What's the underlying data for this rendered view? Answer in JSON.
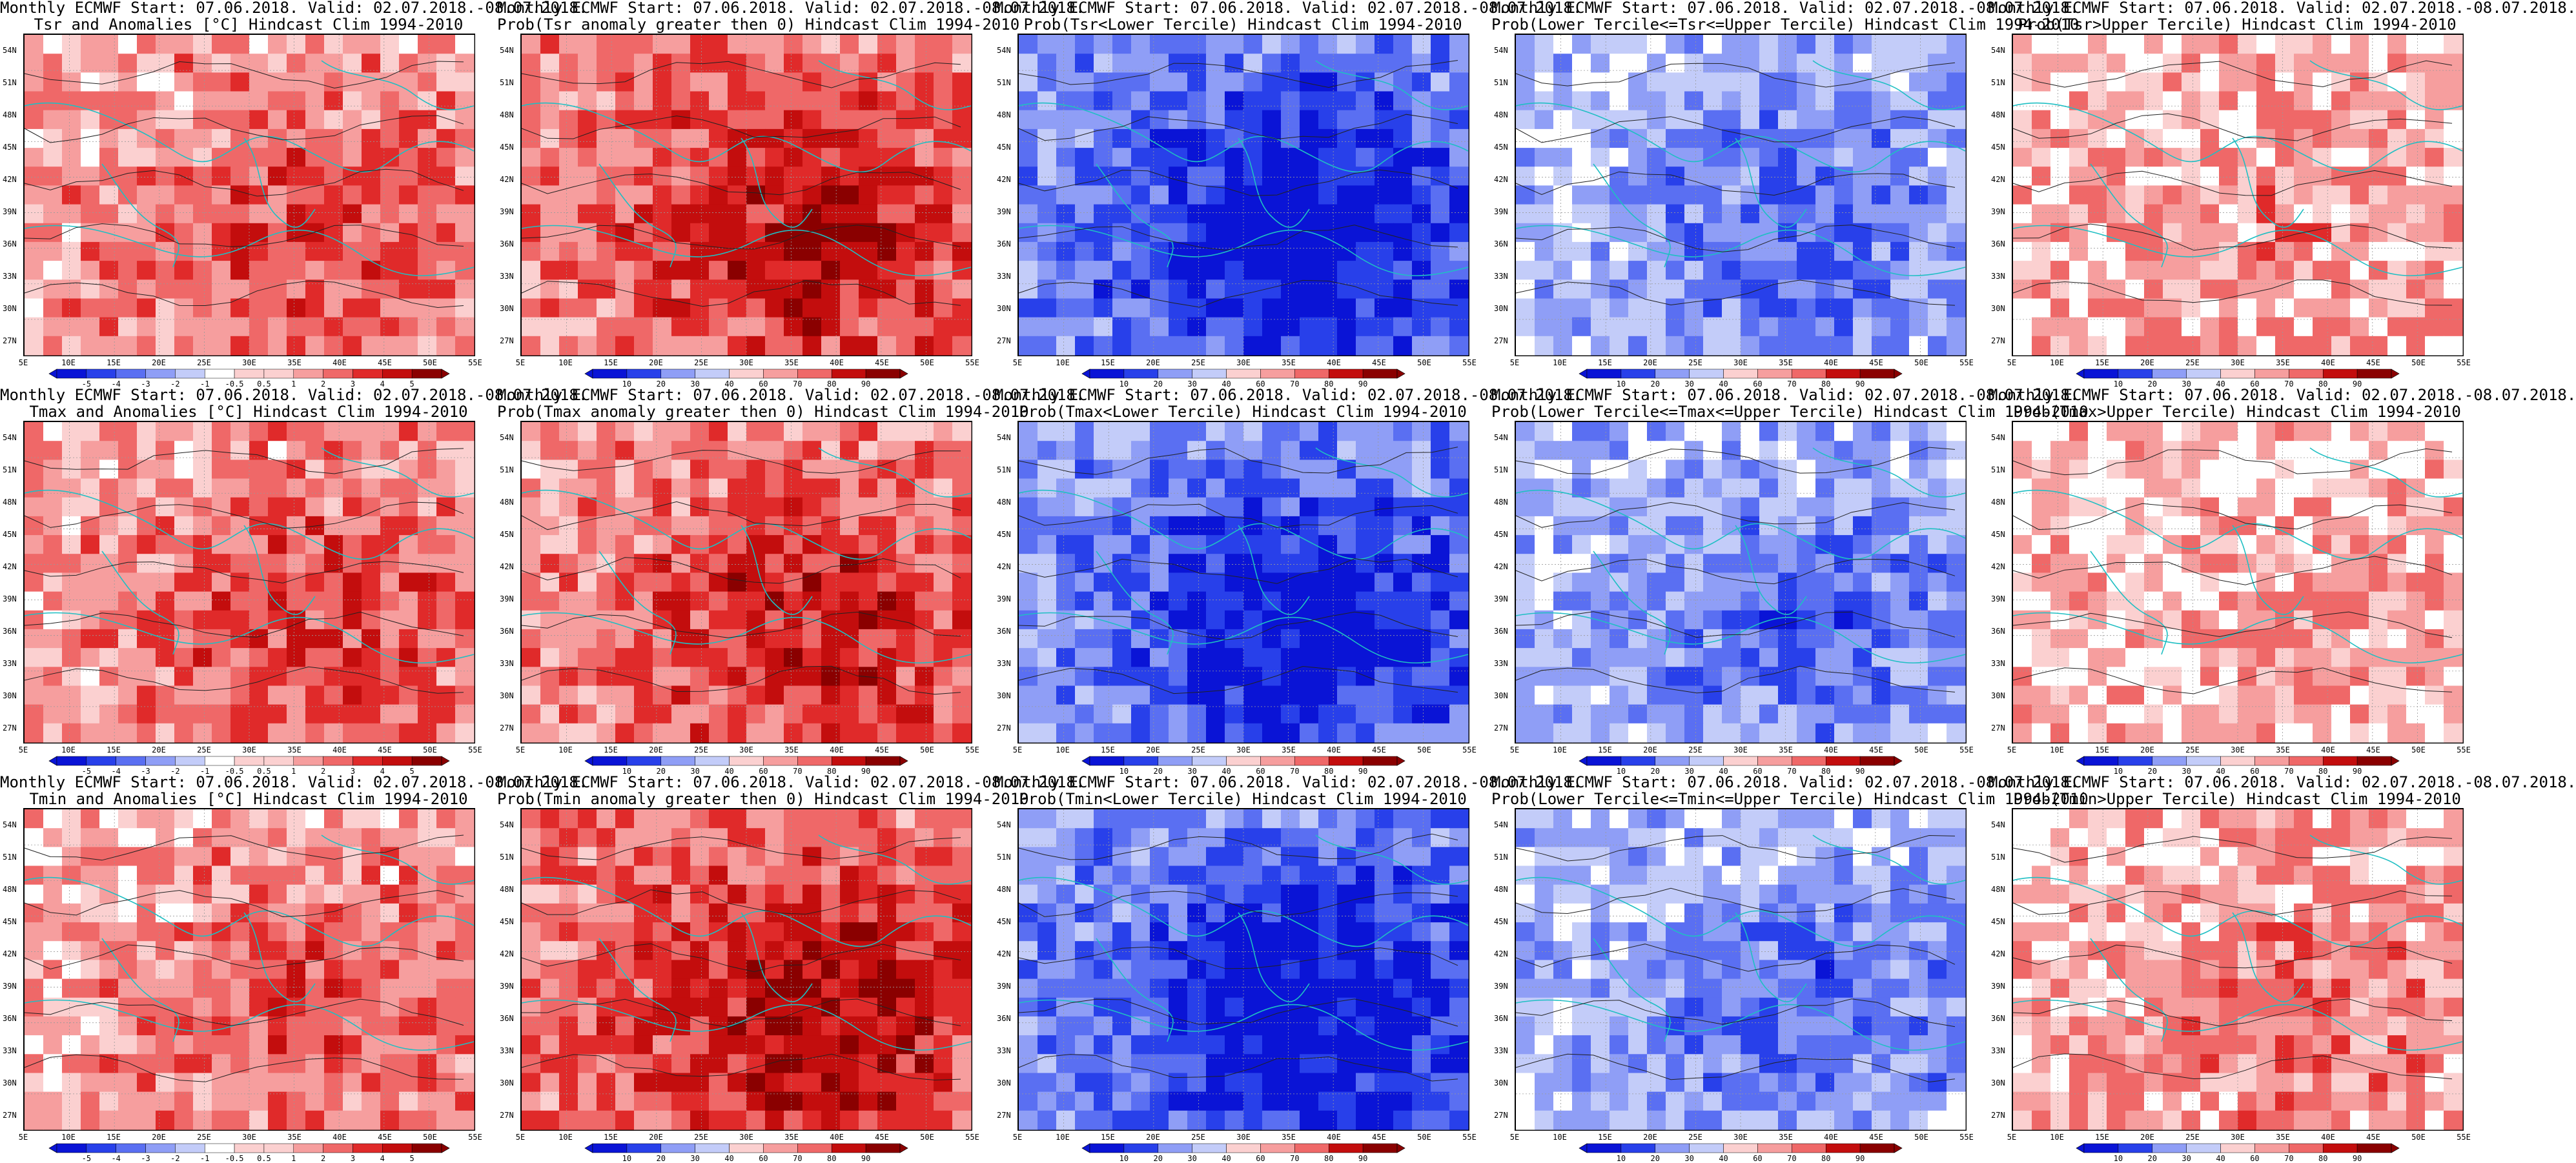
{
  "figure": {
    "colors": {
      "diverging": [
        "#0a14d6",
        "#2840ea",
        "#5a6ff2",
        "#8f9ef6",
        "#c3ccf9",
        "#ffffff",
        "#fbd0d0",
        "#f69e9e",
        "#ef6868",
        "#e02a2a",
        "#c30d0d",
        "#8a0000"
      ],
      "grid": "#999999",
      "coast": "#1fbfc3",
      "contour": "#222222"
    },
    "lat_labels": [
      "54N",
      "51N",
      "48N",
      "45N",
      "42N",
      "39N",
      "36N",
      "33N",
      "30N",
      "27N"
    ],
    "lon_labels": [
      "5E",
      "10E",
      "15E",
      "20E",
      "25E",
      "30E",
      "35E",
      "40E",
      "45E",
      "50E",
      "55E"
    ],
    "panels": [
      {
        "title_line1": "Monthly ECMWF Start: 07.06.2018. Valid: 02.07.2018.-08.07.2018.",
        "title_line2": "Tsr and Anomalies [°C] Hindcast Clim 1994-2010",
        "scale": "anom",
        "bias": 0.45,
        "colorbar": [
          "-5",
          "-4",
          "-3",
          "-2",
          "-1",
          "-0.5",
          "0.5",
          "1",
          "2",
          "3",
          "4",
          "5"
        ]
      },
      {
        "title_line1": "Monthly ECMWF Start: 07.06.2018. Valid: 02.07.2018.-08.07.2018.",
        "title_line2": "Prob(Tsr anomaly greater then 0) Hindcast Clim 1994-2010",
        "scale": "prob",
        "bias": 0.6,
        "colorbar": [
          "10",
          "20",
          "30",
          "40",
          "60",
          "70",
          "80",
          "90"
        ]
      },
      {
        "title_line1": "Monthly ECMWF Start: 07.06.2018. Valid: 02.07.2018.-08.07.2018.",
        "title_line2": "Prob(Tsr<Lower Tercile) Hindcast Clim 1994-2010",
        "scale": "prob",
        "bias": -0.85,
        "colorbar": [
          "10",
          "20",
          "30",
          "40",
          "60",
          "70",
          "80",
          "90"
        ]
      },
      {
        "title_line1": "Monthly ECMWF Start: 07.06.2018. Valid: 02.07.2018.-08.07.2018.",
        "title_line2": "Prob(Lower Tercile<=Tsr<=Upper Tercile) Hindcast Clim 1994-2010",
        "scale": "prob",
        "bias": -0.5,
        "colorbar": [
          "10",
          "20",
          "30",
          "40",
          "60",
          "70",
          "80",
          "90"
        ]
      },
      {
        "title_line1": "Monthly ECMWF Start: 07.06.2018. Valid: 02.07.2018.-08.07.2018.",
        "title_line2": "Prob(Tsr>Upper Tercile) Hindcast Clim 1994-2010",
        "scale": "prob",
        "bias": 0.25,
        "colorbar": [
          "10",
          "20",
          "30",
          "40",
          "60",
          "70",
          "80",
          "90"
        ]
      },
      {
        "title_line1": "Monthly ECMWF Start: 07.06.2018. Valid: 02.07.2018.-08.07.2018.",
        "title_line2": "Tmax and Anomalies [°C] Hindcast Clim 1994-2010",
        "scale": "anom",
        "bias": 0.45,
        "colorbar": [
          "-5",
          "-4",
          "-3",
          "-2",
          "-1",
          "-0.5",
          "0.5",
          "1",
          "2",
          "3",
          "4",
          "5"
        ]
      },
      {
        "title_line1": "Monthly ECMWF Start: 07.06.2018. Valid: 02.07.2018.-08.07.2018.",
        "title_line2": "Prob(Tmax anomaly greater then 0) Hindcast Clim 1994-2010",
        "scale": "prob",
        "bias": 0.55,
        "colorbar": [
          "10",
          "20",
          "30",
          "40",
          "60",
          "70",
          "80",
          "90"
        ]
      },
      {
        "title_line1": "Monthly ECMWF Start: 07.06.2018. Valid: 02.07.2018.-08.07.2018.",
        "title_line2": "Prob(Tmax<Lower Tercile) Hindcast Clim 1994-2010",
        "scale": "prob",
        "bias": -0.8,
        "colorbar": [
          "10",
          "20",
          "30",
          "40",
          "60",
          "70",
          "80",
          "90"
        ]
      },
      {
        "title_line1": "Monthly ECMWF Start: 07.06.2018. Valid: 02.07.2018.-08.07.2018.",
        "title_line2": "Prob(Lower Tercile<=Tmax<=Upper Tercile) Hindcast Clim 1994-2010",
        "scale": "prob",
        "bias": -0.5,
        "colorbar": [
          "10",
          "20",
          "30",
          "40",
          "60",
          "70",
          "80",
          "90"
        ]
      },
      {
        "title_line1": "Monthly ECMWF Start: 07.06.2018. Valid: 02.07.2018.-08.07.2018.",
        "title_line2": "Prob(Tmax>Upper Tercile) Hindcast Clim 1994-2010",
        "scale": "prob",
        "bias": 0.2,
        "colorbar": [
          "10",
          "20",
          "30",
          "40",
          "60",
          "70",
          "80",
          "90"
        ]
      },
      {
        "title_line1": "Monthly ECMWF Start: 07.06.2018. Valid: 02.07.2018.-08.07.2018.",
        "title_line2": "Tmin and Anomalies [°C] Hindcast Clim 1994-2010",
        "scale": "anom",
        "bias": 0.4,
        "colorbar": [
          "-5",
          "-4",
          "-3",
          "-2",
          "-1",
          "-0.5",
          "0.5",
          "1",
          "2",
          "3",
          "4",
          "5"
        ]
      },
      {
        "title_line1": "Monthly ECMWF Start: 07.06.2018. Valid: 02.07.2018.-08.07.2018.",
        "title_line2": "Prob(Tmin anomaly greater then 0) Hindcast Clim 1994-2010",
        "scale": "prob",
        "bias": 0.65,
        "colorbar": [
          "10",
          "20",
          "30",
          "40",
          "60",
          "70",
          "80",
          "90"
        ]
      },
      {
        "title_line1": "Monthly ECMWF Start: 07.06.2018. Valid: 02.07.2018.-08.07.2018.",
        "title_line2": "Prob(Tmin<Lower Tercile) Hindcast Clim 1994-2010",
        "scale": "prob",
        "bias": -0.85,
        "colorbar": [
          "10",
          "20",
          "30",
          "40",
          "60",
          "70",
          "80",
          "90"
        ]
      },
      {
        "title_line1": "Monthly ECMWF Start: 07.06.2018. Valid: 02.07.2018.-08.07.2018.",
        "title_line2": "Prob(Lower Tercile<=Tmin<=Upper Tercile) Hindcast Clim 1994-2010",
        "scale": "prob",
        "bias": -0.5,
        "colorbar": [
          "10",
          "20",
          "30",
          "40",
          "60",
          "70",
          "80",
          "90"
        ]
      },
      {
        "title_line1": "Monthly ECMWF Start: 07.06.2018. Valid: 02.07.2018.-08.07.2018.",
        "title_line2": "Prob(Tmin>Upper Tercile) Hindcast Clim 1994-2010",
        "scale": "prob",
        "bias": 0.3,
        "colorbar": [
          "10",
          "20",
          "30",
          "40",
          "60",
          "70",
          "80",
          "90"
        ]
      }
    ]
  }
}
